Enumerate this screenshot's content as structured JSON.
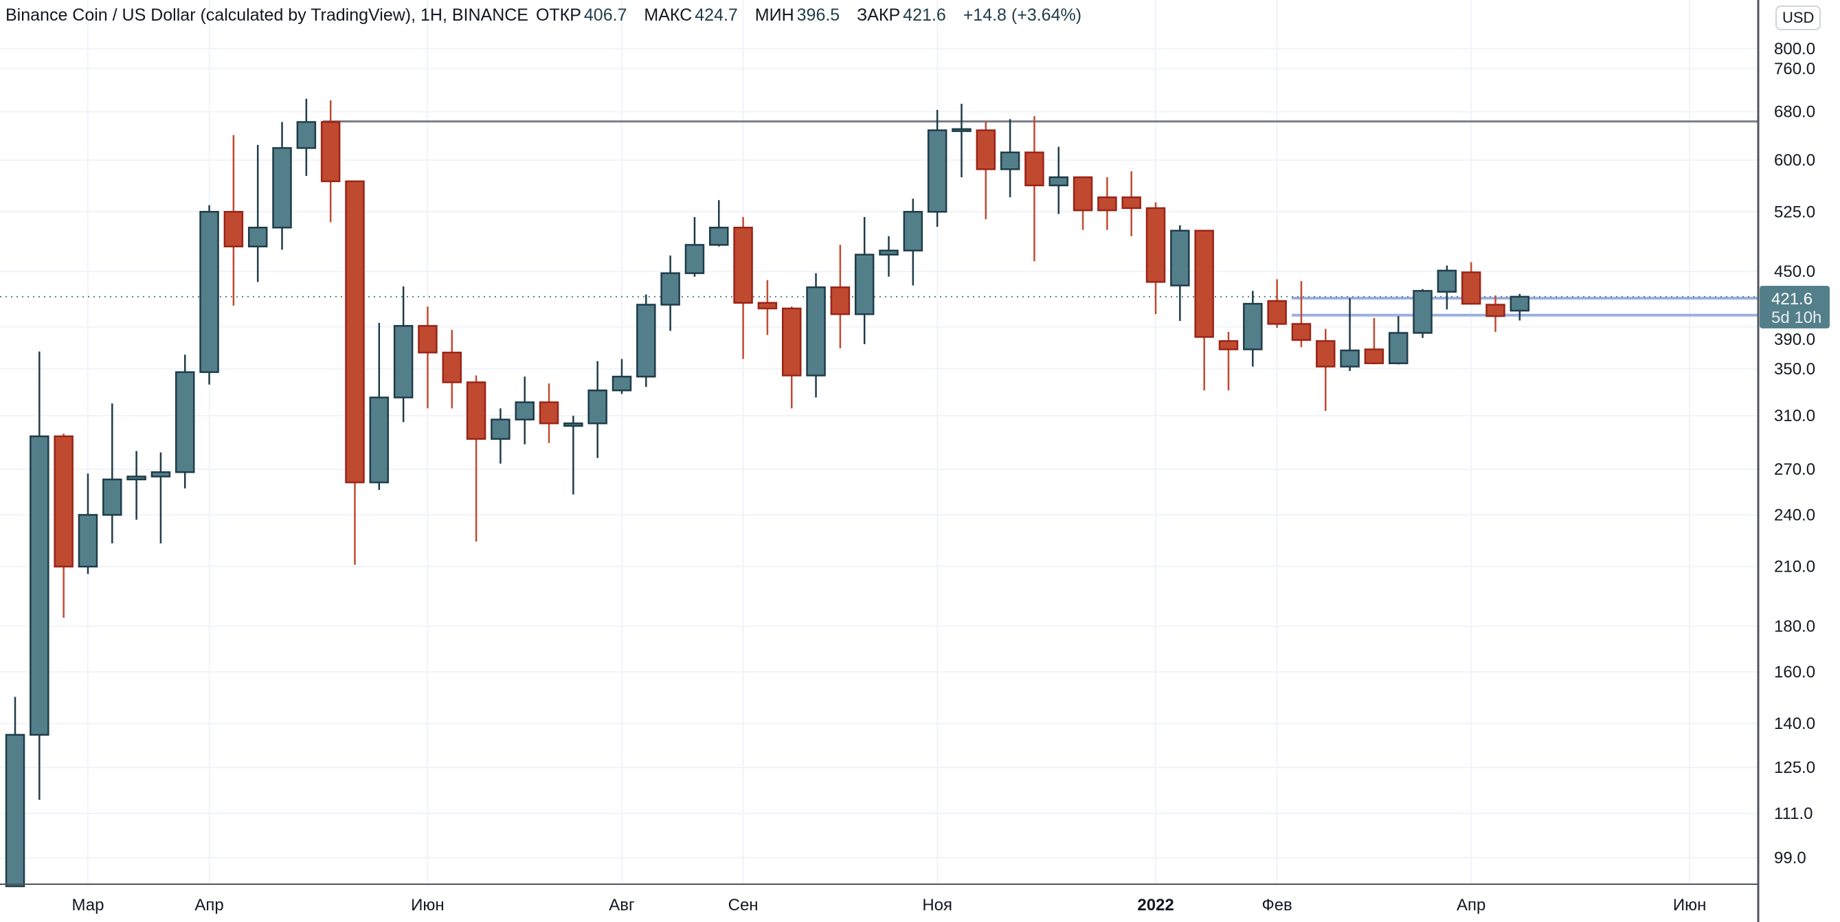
{
  "header": {
    "title": "Binance Coin / US Dollar (calculated by TradingView), 1H, BINANCE",
    "open_label": "ОТКР",
    "open": "406.7",
    "high_label": "МАКС",
    "high": "424.7",
    "low_label": "МИН",
    "low": "396.5",
    "close_label": "ЗАКР",
    "close": "421.6",
    "change": "+14.8 (+3.64%)"
  },
  "currency_button": "USD",
  "price_label": {
    "price": "421.6",
    "countdown": "5d 10h"
  },
  "colors": {
    "up": "#537f8a",
    "up_border": "#1f3c48",
    "down": "#c04a30",
    "down_border": "#9a2418",
    "hline": "#787b86",
    "blue_line": "#9bb0de"
  },
  "chart_data": {
    "type": "candlestick",
    "title": "Binance Coin / US Dollar",
    "scale": "log",
    "ylim": [
      85,
      820
    ],
    "y_ticks": [
      "800.0",
      "760.0",
      "680.0",
      "600.0",
      "525.0",
      "450.0",
      "390.0",
      "350.0",
      "310.0",
      "270.0",
      "240.0",
      "210.0",
      "180.0",
      "160.0",
      "140.0",
      "125.0",
      "111.0",
      "99.0"
    ],
    "y_tick_values": [
      800,
      760,
      680,
      600,
      525,
      450,
      390,
      350,
      310,
      270,
      240,
      210,
      180,
      160,
      140,
      125,
      111,
      99
    ],
    "x_ticks": [
      {
        "label": "Мар",
        "index": 3
      },
      {
        "label": "Апр",
        "index": 8
      },
      {
        "label": "Июн",
        "index": 17
      },
      {
        "label": "Авг",
        "index": 25
      },
      {
        "label": "Сен",
        "index": 30
      },
      {
        "label": "Ноя",
        "index": 38
      },
      {
        "label": "2022",
        "index": 47,
        "bold": true
      },
      {
        "label": "Фев",
        "index": 52
      },
      {
        "label": "Апр",
        "index": 60
      },
      {
        "label": "Июн",
        "index": 69
      }
    ],
    "horizontal_level": 663,
    "blue_levels": [
      420,
      402
    ],
    "last_price": 421.6,
    "ohlc": [
      [
        90,
        150,
        85,
        136
      ],
      [
        136,
        366,
        115,
        294
      ],
      [
        294,
        296,
        184,
        210
      ],
      [
        210,
        267,
        206,
        240
      ],
      [
        240,
        320,
        223,
        263
      ],
      [
        263,
        283,
        237,
        265
      ],
      [
        265,
        282,
        223,
        268
      ],
      [
        268,
        363,
        257,
        347
      ],
      [
        347,
        534,
        336,
        525
      ],
      [
        525,
        640,
        412,
        480
      ],
      [
        480,
        624,
        438,
        504
      ],
      [
        504,
        662,
        476,
        619
      ],
      [
        619,
        703,
        576,
        662
      ],
      [
        662,
        700,
        511,
        568
      ],
      [
        568,
        568,
        211,
        261
      ],
      [
        261,
        394,
        256,
        325
      ],
      [
        325,
        433,
        305,
        391
      ],
      [
        391,
        411,
        316,
        365
      ],
      [
        365,
        387,
        316,
        338
      ],
      [
        338,
        344,
        224,
        292
      ],
      [
        292,
        316,
        274,
        307
      ],
      [
        307,
        343,
        288,
        321
      ],
      [
        321,
        337,
        289,
        304
      ],
      [
        302,
        310,
        253,
        304
      ],
      [
        304,
        357,
        278,
        331
      ],
      [
        331,
        359,
        328,
        343
      ],
      [
        343,
        424,
        334,
        413
      ],
      [
        413,
        469,
        386,
        448
      ],
      [
        448,
        518,
        444,
        482
      ],
      [
        482,
        541,
        480,
        504
      ],
      [
        504,
        518,
        359,
        415
      ],
      [
        415,
        440,
        382,
        409
      ],
      [
        409,
        411,
        316,
        344
      ],
      [
        344,
        448,
        325,
        432
      ],
      [
        432,
        482,
        369,
        403
      ],
      [
        403,
        518,
        373,
        470
      ],
      [
        470,
        493,
        444,
        475
      ],
      [
        475,
        543,
        434,
        525
      ],
      [
        525,
        683,
        505,
        648
      ],
      [
        648,
        694,
        574,
        650
      ],
      [
        648,
        662,
        515,
        586
      ],
      [
        586,
        667,
        545,
        612
      ],
      [
        612,
        672,
        462,
        562
      ],
      [
        562,
        621,
        522,
        574
      ],
      [
        574,
        575,
        501,
        527
      ],
      [
        545,
        574,
        501,
        527
      ],
      [
        545,
        583,
        493,
        530
      ],
      [
        530,
        538,
        403,
        438
      ],
      [
        434,
        507,
        396,
        500
      ],
      [
        500,
        500,
        331,
        380
      ],
      [
        376,
        385,
        331,
        368
      ],
      [
        368,
        428,
        352,
        414
      ],
      [
        417,
        441,
        389,
        393
      ],
      [
        393,
        439,
        370,
        377
      ],
      [
        376,
        388,
        314,
        352
      ],
      [
        352,
        420,
        348,
        367
      ],
      [
        368,
        399,
        354,
        355
      ],
      [
        355,
        401,
        354,
        384
      ],
      [
        384,
        430,
        379,
        428
      ],
      [
        427,
        457,
        408,
        451
      ],
      [
        449,
        461,
        414,
        414
      ],
      [
        413,
        423,
        385,
        401
      ],
      [
        406.7,
        424.7,
        396.5,
        421.6
      ]
    ]
  }
}
